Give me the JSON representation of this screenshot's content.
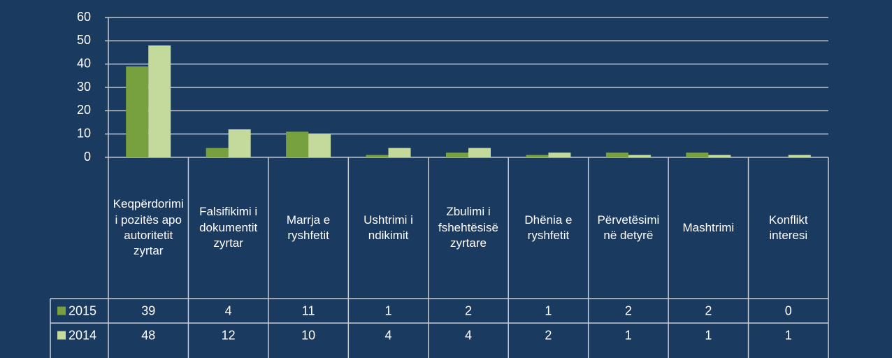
{
  "chart_data": {
    "type": "bar",
    "categories": [
      "Keqpërdorimi i pozitës apo autoritetit zyrtar",
      "Falsifikimi i dokumentit zyrtar",
      "Marrja e ryshfetit",
      "Ushtrimi i ndikimit",
      "Zbulimi i fshehtësisë zyrtare",
      "Dhënia e ryshfetit",
      "Përvetësimi në detyrë",
      "Mashtrimi",
      "Konflikt interesi"
    ],
    "series": [
      {
        "name": "2015",
        "color": "#77a13e",
        "values": [
          39,
          4,
          11,
          1,
          2,
          1,
          2,
          2,
          0
        ]
      },
      {
        "name": "2014",
        "color": "#c4da9c",
        "values": [
          48,
          12,
          10,
          4,
          4,
          2,
          1,
          1,
          1
        ]
      }
    ],
    "ylim": [
      0,
      60
    ],
    "yticks": [
      0,
      10,
      20,
      30,
      40,
      50,
      60
    ],
    "grid": true
  }
}
